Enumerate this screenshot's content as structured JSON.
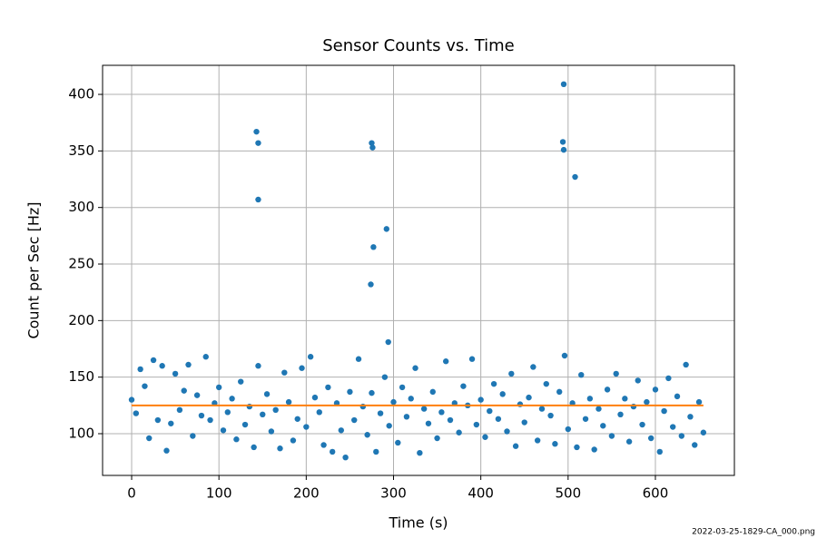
{
  "chart_data": {
    "type": "scatter",
    "title": "Sensor Counts vs. Time",
    "xlabel": "Time (s)",
    "ylabel": "Count per Sec [Hz]",
    "footnote": "2022-03-25-1829-CA_000.png",
    "xlim": [
      -33.3,
      690.5
    ],
    "ylim": [
      63.1,
      425.7
    ],
    "xticks": [
      0,
      100,
      200,
      300,
      400,
      500,
      600
    ],
    "yticks": [
      100,
      150,
      200,
      250,
      300,
      350,
      400
    ],
    "grid": true,
    "series": [
      {
        "color": "#1f77b4",
        "x": [
          0,
          5,
          10,
          15,
          20,
          25,
          30,
          35,
          40,
          45,
          50,
          55,
          60,
          65,
          70,
          75,
          80,
          85,
          90,
          95,
          100,
          105,
          110,
          115,
          120,
          125,
          130,
          135,
          140,
          145,
          150,
          155,
          160,
          165,
          170,
          175,
          180,
          185,
          190,
          195,
          200,
          205,
          210,
          215,
          220,
          225,
          230,
          235,
          240,
          245,
          250,
          255,
          260,
          265,
          270,
          275,
          280,
          285,
          290,
          295,
          300,
          305,
          310,
          315,
          320,
          325,
          330,
          335,
          340,
          345,
          350,
          355,
          360,
          365,
          370,
          375,
          380,
          385,
          390,
          395,
          400,
          405,
          410,
          415,
          420,
          425,
          430,
          435,
          440,
          445,
          450,
          455,
          460,
          465,
          470,
          475,
          480,
          485,
          490,
          500,
          505,
          510,
          515,
          520,
          525,
          530,
          535,
          540,
          545,
          550,
          555,
          560,
          565,
          570,
          575,
          580,
          585,
          590,
          595,
          600,
          605,
          610,
          615,
          620,
          625,
          630,
          635,
          640,
          645,
          650,
          655,
          143,
          145,
          145,
          275,
          276,
          277,
          274,
          292,
          294,
          495,
          494,
          495,
          508,
          496
        ],
        "values": [
          130,
          118,
          157,
          142,
          96,
          165,
          112,
          160,
          85,
          109,
          153,
          121,
          138,
          161,
          98,
          134,
          116,
          168,
          112,
          127,
          141,
          103,
          119,
          131,
          95,
          146,
          108,
          124,
          88,
          160,
          117,
          135,
          102,
          121,
          87,
          154,
          128,
          94,
          113,
          158,
          106,
          168,
          132,
          119,
          90,
          141,
          84,
          127,
          103,
          79,
          137,
          112,
          166,
          124,
          99,
          136,
          84,
          118,
          150,
          107,
          128,
          92,
          141,
          115,
          131,
          158,
          83,
          122,
          109,
          137,
          96,
          119,
          164,
          112,
          127,
          101,
          142,
          125,
          166,
          108,
          130,
          97,
          120,
          144,
          113,
          135,
          102,
          153,
          89,
          126,
          110,
          132,
          159,
          94,
          122,
          144,
          116,
          91,
          137,
          104,
          127,
          88,
          152,
          113,
          131,
          86,
          122,
          107,
          139,
          98,
          153,
          117,
          131,
          93,
          124,
          147,
          108,
          128,
          96,
          139,
          84,
          120,
          149,
          106,
          133,
          98,
          161,
          115,
          90,
          128,
          101,
          367,
          357,
          307,
          357,
          353,
          265,
          232,
          281,
          181,
          409,
          358,
          351,
          327,
          169
        ]
      }
    ],
    "fit": {
      "color": "#ff7f0e",
      "x": [
        0,
        655
      ],
      "values": [
        125,
        125
      ]
    }
  }
}
